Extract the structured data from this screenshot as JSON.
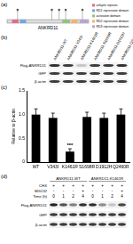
{
  "panel_a": {
    "label": "(a)",
    "protein": "ANKRD11",
    "length": 2663,
    "domains": [
      {
        "name": "ankyrin repeats",
        "start": 160,
        "end": 370,
        "color": "#e06c8c"
      },
      {
        "name": "RD1 repression domain",
        "start": 420,
        "end": 620,
        "color": "#6fa8dc"
      },
      {
        "name": "activation domain",
        "start": 1800,
        "end": 2050,
        "color": "#93c47d"
      },
      {
        "name": "RD2 repression domain",
        "start": 2100,
        "end": 2300,
        "color": "#f6b26b"
      },
      {
        "name": "RD3 repression domain",
        "start": 2369,
        "end": 2663,
        "color": "#b4a7d6"
      }
    ],
    "sites": [
      343,
      1461,
      1698,
      1912,
      2460
    ]
  },
  "panel_b": {
    "label": "(b)",
    "lanes": [
      "ANKRD11-WT",
      "ANKRD11-V343I",
      "ANKRD11-K1461R",
      "ANKRD11-S1698R",
      "ANKRD11-D1912H",
      "ANKRD11-Q2460R"
    ],
    "rows": [
      "Flag-ANKRD11",
      "GFP",
      "β-actin"
    ]
  },
  "panel_c": {
    "label": "(c)"
  },
  "chart_data": {
    "type": "bar",
    "categories": [
      "WT",
      "V343I",
      "K1461R",
      "S1698R",
      "D1912H",
      "Q2460R"
    ],
    "values": [
      1.0,
      0.93,
      0.22,
      0.95,
      0.93,
      1.0
    ],
    "errors": [
      0.12,
      0.1,
      0.06,
      0.1,
      0.1,
      0.12
    ],
    "color": "#000000",
    "y_label": "Relative to β-actin",
    "ylim": [
      0,
      1.5
    ],
    "yticks": [
      0,
      0.5,
      {
        "value": 1,
        "label": "1.0"
      },
      1.5
    ],
    "grid": false,
    "annotations": [
      {
        "text": "***",
        "category": "K1461R"
      }
    ]
  },
  "panel_d": {
    "label": "(d)",
    "groups": [
      "ANKRD11-WT",
      "ANKRD11-K1461R"
    ],
    "conditions": [
      {
        "name": "CHX",
        "values": [
          "+",
          "+",
          "+",
          "+",
          "+",
          "+",
          "+",
          "+"
        ]
      },
      {
        "name": "MG132",
        "values": [
          "-",
          "-",
          "-",
          "+",
          "-",
          "-",
          "-",
          "+"
        ]
      },
      {
        "name": "Time (h)",
        "values": [
          0,
          1,
          2,
          4,
          0,
          1,
          2,
          4
        ]
      }
    ],
    "rows": [
      "Flag-ANKRD11",
      "GFP",
      "β-actin"
    ]
  }
}
